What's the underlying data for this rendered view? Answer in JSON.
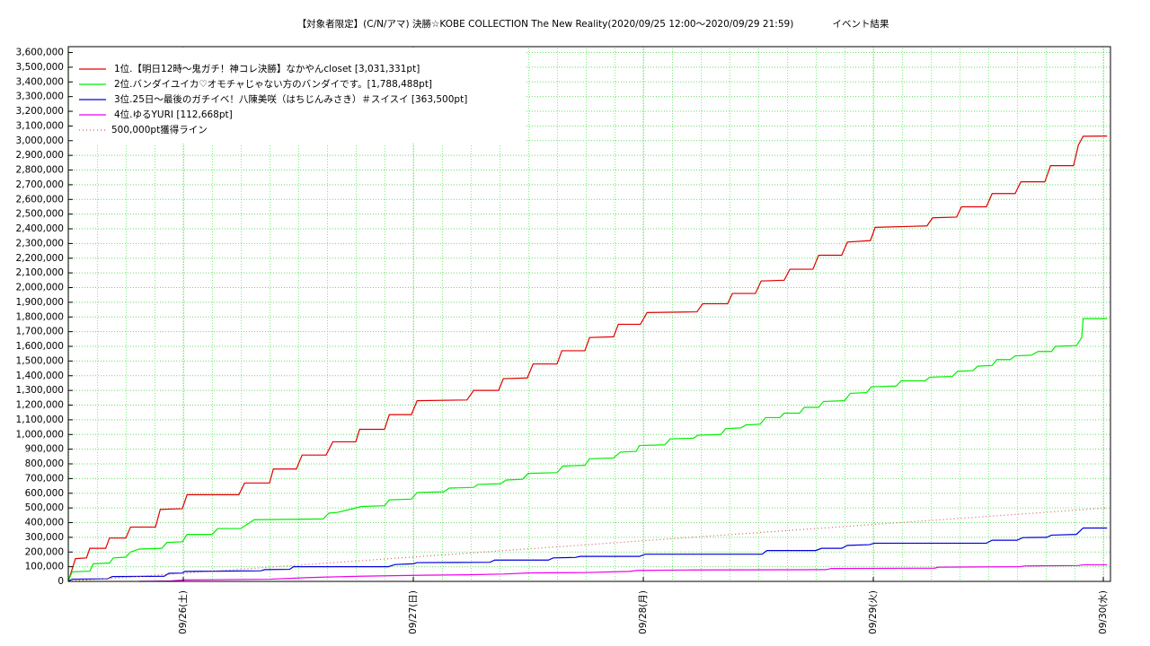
{
  "chart_data": {
    "type": "line",
    "title": "【対象者限定】(C/N/アマ) 決勝☆KOBE COLLECTION The New Reality(2020/09/25 12:00〜2020/09/29 21:59)",
    "subtitle": "イベント結果",
    "xlim": [
      0,
      108.75
    ],
    "xticks": [
      {
        "value": 12,
        "label": "09/26(土)"
      },
      {
        "value": 36,
        "label": "09/27(日)"
      },
      {
        "value": 60,
        "label": "09/28(月)"
      },
      {
        "value": 84,
        "label": "09/29(火)"
      },
      {
        "value": 108,
        "label": "09/30(水)"
      }
    ],
    "ylim": [
      0,
      3640000
    ],
    "yticks": [
      0,
      {
        "value": 100000,
        "label": "100,000"
      },
      {
        "value": 200000,
        "label": "200,000"
      },
      {
        "value": 300000,
        "label": "300,000"
      },
      {
        "value": 400000,
        "label": "400,000"
      },
      {
        "value": 500000,
        "label": "500,000"
      },
      {
        "value": 600000,
        "label": "600,000"
      },
      {
        "value": 700000,
        "label": "700,000"
      },
      {
        "value": 800000,
        "label": "800,000"
      },
      {
        "value": 900000,
        "label": "900,000"
      },
      {
        "value": 1000000,
        "label": "1,000,000"
      },
      {
        "value": 1100000,
        "label": "1,100,000"
      },
      {
        "value": 1200000,
        "label": "1,200,000"
      },
      {
        "value": 1300000,
        "label": "1,300,000"
      },
      {
        "value": 1400000,
        "label": "1,400,000"
      },
      {
        "value": 1500000,
        "label": "1,500,000"
      },
      {
        "value": 1600000,
        "label": "1,600,000"
      },
      {
        "value": 1700000,
        "label": "1,700,000"
      },
      {
        "value": 1800000,
        "label": "1,800,000"
      },
      {
        "value": 1900000,
        "label": "1,900,000"
      },
      {
        "value": 2000000,
        "label": "2,000,000"
      },
      {
        "value": 2100000,
        "label": "2,100,000"
      },
      {
        "value": 2200000,
        "label": "2,200,000"
      },
      {
        "value": 2300000,
        "label": "2,300,000"
      },
      {
        "value": 2400000,
        "label": "2,400,000"
      },
      {
        "value": 2500000,
        "label": "2,500,000"
      },
      {
        "value": 2600000,
        "label": "2,600,000"
      },
      {
        "value": 2700000,
        "label": "2,700,000"
      },
      {
        "value": 2800000,
        "label": "2,800,000"
      },
      {
        "value": 2900000,
        "label": "2,900,000"
      },
      {
        "value": 3000000,
        "label": "3,000,000"
      },
      {
        "value": 3100000,
        "label": "3,100,000"
      },
      {
        "value": 3200000,
        "label": "3,200,000"
      },
      {
        "value": 3300000,
        "label": "3,300,000"
      },
      {
        "value": 3400000,
        "label": "3,400,000"
      },
      {
        "value": 3500000,
        "label": "3,500,000"
      },
      {
        "value": 3600000,
        "label": "3,600,000"
      }
    ],
    "grid": true,
    "legend": "upper left",
    "series": [
      {
        "name": "1位.【明日12時〜鬼ガチ！神コレ決勝】なかやんcloset [3,031,331pt]",
        "color": "#e00000",
        "style": "solid",
        "x": [
          0,
          0.75,
          1.9,
          2.25,
          3.9,
          4.3,
          6,
          6.5,
          9.1,
          9.6,
          11.9,
          12.4,
          17.8,
          18.4,
          21,
          21.4,
          23.8,
          24.4,
          26.9,
          27.6,
          30,
          30.4,
          33,
          33.5,
          35.8,
          36.4,
          41.6,
          42.3,
          44.9,
          45.4,
          47.9,
          48.5,
          51,
          51.5,
          53.9,
          54.4,
          56.9,
          57.4,
          59.7,
          60.4,
          65.6,
          66.2,
          68.8,
          69.3,
          71.7,
          72.3,
          74.7,
          75.3,
          77.7,
          78.3,
          80.7,
          81.3,
          83.7,
          84.2,
          89.6,
          90.2,
          92.7,
          93.2,
          95.8,
          96.4,
          98.8,
          99.4,
          101.9,
          102.5,
          104.9,
          105.4,
          105.9,
          108.4
        ],
        "values": [
          0,
          155000,
          160000,
          225000,
          225000,
          295000,
          295000,
          370000,
          370000,
          490000,
          495000,
          590000,
          590000,
          670000,
          670000,
          765000,
          765000,
          860000,
          860000,
          950000,
          950000,
          1035000,
          1035000,
          1135000,
          1135000,
          1230000,
          1235000,
          1300000,
          1300000,
          1380000,
          1385000,
          1480000,
          1480000,
          1570000,
          1570000,
          1660000,
          1665000,
          1750000,
          1750000,
          1830000,
          1835000,
          1890000,
          1890000,
          1960000,
          1960000,
          2045000,
          2050000,
          2125000,
          2125000,
          2220000,
          2220000,
          2310000,
          2320000,
          2410000,
          2420000,
          2475000,
          2480000,
          2550000,
          2550000,
          2640000,
          2640000,
          2720000,
          2720000,
          2830000,
          2830000,
          2970000,
          3030000,
          3031331
        ]
      },
      {
        "name": "2位.バンダイユイカ♡オモチャじゃない方のバンダイです。[1,788,488pt]",
        "color": "#00ee00",
        "style": "solid",
        "x": [
          0,
          0.4,
          2.25,
          2.6,
          4.3,
          4.7,
          6,
          6.5,
          7.4,
          9.75,
          10.3,
          11.9,
          12.4,
          15,
          15.6,
          18,
          18.7,
          19.4,
          26.6,
          27.2,
          28.1,
          30,
          30.6,
          33,
          33.5,
          35.8,
          36.4,
          39.2,
          39.75,
          42.3,
          42.75,
          45.1,
          45.7,
          47.4,
          48,
          51,
          51.6,
          53.9,
          54.4,
          56.9,
          57.6,
          59.25,
          59.6,
          62.25,
          62.8,
          65.25,
          65.7,
          68.1,
          68.6,
          70.2,
          70.7,
          72.2,
          72.75,
          74.25,
          74.7,
          76.3,
          76.8,
          78.3,
          78.8,
          81,
          81.6,
          83.3,
          83.8,
          86.4,
          86.9,
          89.4,
          89.9,
          92.25,
          92.8,
          94.4,
          94.9,
          96.4,
          96.9,
          98.3,
          98.8,
          100.5,
          101.2,
          102.6,
          103,
          105.2,
          105.75,
          105.9,
          108.4
        ],
        "values": [
          0,
          65000,
          70000,
          120000,
          125000,
          160000,
          165000,
          200000,
          220000,
          225000,
          265000,
          270000,
          320000,
          320000,
          360000,
          360000,
          390000,
          420000,
          425000,
          465000,
          470000,
          500000,
          510000,
          515000,
          555000,
          560000,
          605000,
          610000,
          635000,
          640000,
          660000,
          665000,
          690000,
          695000,
          735000,
          740000,
          785000,
          790000,
          835000,
          840000,
          880000,
          885000,
          925000,
          930000,
          970000,
          975000,
          995000,
          1000000,
          1040000,
          1045000,
          1065000,
          1070000,
          1115000,
          1115000,
          1145000,
          1145000,
          1185000,
          1185000,
          1225000,
          1230000,
          1280000,
          1285000,
          1325000,
          1330000,
          1365000,
          1365000,
          1390000,
          1395000,
          1430000,
          1435000,
          1465000,
          1470000,
          1510000,
          1510000,
          1535000,
          1540000,
          1565000,
          1565000,
          1600000,
          1605000,
          1660000,
          1788488,
          1788488
        ]
      },
      {
        "name": "3位.25日〜最後のガチイベ！八陳美咲（はちじんみさき）＃スイスイ [363,500pt]",
        "color": "#0000dd",
        "style": "solid",
        "x": [
          0,
          0.4,
          4.1,
          4.6,
          10,
          10.5,
          11.9,
          12.2,
          20.1,
          20.5,
          23.1,
          23.5,
          33.4,
          34.1,
          36,
          36.4,
          44,
          44.5,
          50.1,
          50.6,
          52.9,
          53.4,
          59.6,
          60.2,
          72.4,
          72.9,
          78,
          78.6,
          80.7,
          81.3,
          83.6,
          84.1,
          95.8,
          96.4,
          99,
          99.6,
          102.1,
          102.6,
          105.2,
          105.9,
          108.4
        ],
        "values": [
          0,
          15000,
          18000,
          33000,
          35000,
          55000,
          57000,
          68000,
          72000,
          80000,
          82000,
          100000,
          100000,
          115000,
          120000,
          128000,
          130000,
          145000,
          145000,
          160000,
          163000,
          170000,
          170000,
          185000,
          185000,
          210000,
          210000,
          225000,
          225000,
          245000,
          250000,
          260000,
          260000,
          280000,
          280000,
          298000,
          300000,
          315000,
          320000,
          363500,
          363500
        ]
      },
      {
        "name": "4位.ゆるYURI [112,668pt]",
        "color": "#ee00ee",
        "style": "solid",
        "x": [
          7.4,
          10.7,
          12.1,
          21,
          22.9,
          24.75,
          27.1,
          30.4,
          33.2,
          36.9,
          41.6,
          45.4,
          48.2,
          53.8,
          58.5,
          59.4,
          65.1,
          79.1,
          79.6,
          90.4,
          90.8,
          99.3,
          99.75,
          105.4,
          105.9,
          108.4
        ],
        "values": [
          0,
          3000,
          10000,
          15000,
          20000,
          25000,
          30000,
          35000,
          38000,
          42000,
          45000,
          50000,
          58000,
          60000,
          68000,
          75000,
          78000,
          80000,
          88000,
          90000,
          97000,
          100000,
          105000,
          108000,
          112668,
          112668
        ]
      },
      {
        "name": "500,000pt獲得ライン",
        "color": "#d06060",
        "style": "dotted",
        "x": [
          0,
          108.4
        ],
        "values": [
          0,
          500000
        ]
      }
    ]
  }
}
